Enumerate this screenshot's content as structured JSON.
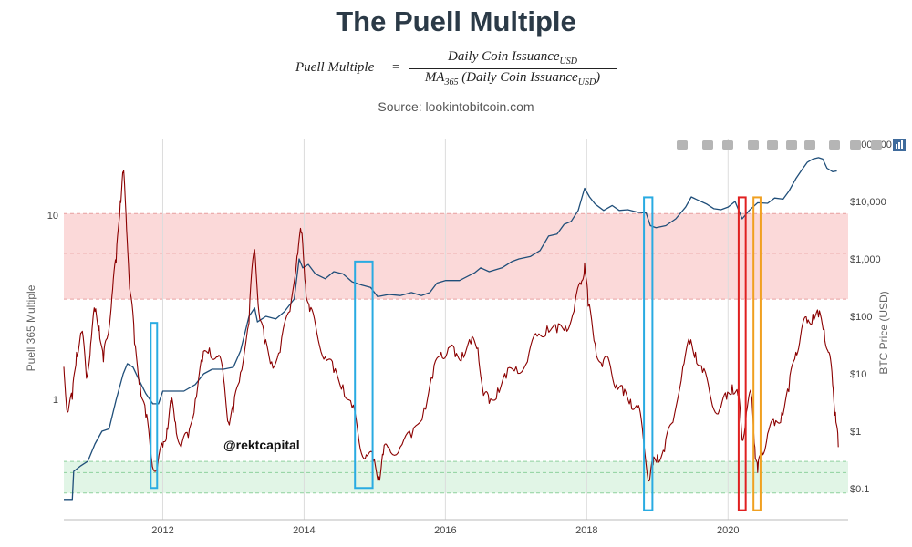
{
  "header": {
    "title": "The Puell Multiple",
    "formula": {
      "lhs": "Puell Multiple",
      "eq": "=",
      "numerator": "Daily Coin Issuance",
      "numerator_sub": "USD",
      "denominator_prefix": "MA",
      "denominator_prefix_sub": "365",
      "denominator": "(Daily Coin Issuance",
      "denominator_sub": "USD",
      "denominator_close": ")"
    },
    "source": "Source: lookintobitcoin.com"
  },
  "watermark": "@rektcapital",
  "toolbar": {
    "icons": [
      "camera-icon",
      "zoom-icon",
      "pan-icon",
      "zoom-in-icon",
      "zoom-out-icon",
      "autoscale-icon",
      "home-icon",
      "spike-lines-icon",
      "hover-closest-icon",
      "hover-compare-icon",
      "plotly-logo-icon"
    ]
  },
  "chart_data": {
    "type": "line",
    "title": "",
    "x_range": [
      2010.6,
      2021.7
    ],
    "x_ticks": [
      2012,
      2014,
      2016,
      2018,
      2020
    ],
    "x_tick_labels": [
      "2012",
      "2014",
      "2016",
      "2018",
      "2020"
    ],
    "left_axis": {
      "label": "Puell 365 Multiple",
      "scale": "log",
      "ticks": [
        1,
        10
      ],
      "tick_labels": [
        "1",
        "10"
      ]
    },
    "right_axis": {
      "label": "BTC Price (USD)",
      "scale": "log",
      "ticks": [
        0.1,
        1,
        10,
        100,
        1000,
        10000,
        100000
      ],
      "tick_labels": [
        "$0.1",
        "$1",
        "$10",
        "$100",
        "$1,000",
        "$10,000",
        "$100,000"
      ]
    },
    "zones": [
      {
        "name": "red-zone",
        "from": 3.5,
        "to": 10.2,
        "color": "#fbd9d9",
        "midline": 6.2
      },
      {
        "name": "green-zone",
        "from": 0.31,
        "to": 0.46,
        "color": "#e1f5e6",
        "midline": 0.4
      }
    ],
    "series": [
      {
        "axis": "left",
        "color": "#8b0000",
        "points": [
          [
            2010.6,
            1.5
          ],
          [
            2010.65,
            0.85
          ],
          [
            2010.72,
            1.0
          ],
          [
            2010.78,
            1.8
          ],
          [
            2010.85,
            2.3
          ],
          [
            2010.92,
            1.3
          ],
          [
            2010.98,
            2.0
          ],
          [
            2011.04,
            3.0
          ],
          [
            2011.1,
            2.5
          ],
          [
            2011.16,
            1.6
          ],
          [
            2011.22,
            2.2
          ],
          [
            2011.28,
            3.6
          ],
          [
            2011.34,
            5.5
          ],
          [
            2011.4,
            12.0
          ],
          [
            2011.44,
            17.0
          ],
          [
            2011.48,
            10.0
          ],
          [
            2011.53,
            4.0
          ],
          [
            2011.6,
            2.0
          ],
          [
            2011.68,
            1.2
          ],
          [
            2011.76,
            0.8
          ],
          [
            2011.84,
            0.48
          ],
          [
            2011.92,
            0.42
          ],
          [
            2012.0,
            0.55
          ],
          [
            2012.06,
            0.7
          ],
          [
            2012.12,
            0.95
          ],
          [
            2012.18,
            0.75
          ],
          [
            2012.26,
            0.55
          ],
          [
            2012.36,
            0.62
          ],
          [
            2012.46,
            1.0
          ],
          [
            2012.56,
            1.6
          ],
          [
            2012.66,
            1.9
          ],
          [
            2012.78,
            1.7
          ],
          [
            2012.86,
            1.3
          ],
          [
            2012.93,
            0.75
          ],
          [
            2013.0,
            0.85
          ],
          [
            2013.1,
            1.4
          ],
          [
            2013.22,
            2.6
          ],
          [
            2013.3,
            6.5
          ],
          [
            2013.36,
            3.0
          ],
          [
            2013.44,
            2.0
          ],
          [
            2013.54,
            1.6
          ],
          [
            2013.66,
            1.8
          ],
          [
            2013.8,
            3.0
          ],
          [
            2013.9,
            6.0
          ],
          [
            2013.96,
            8.0
          ],
          [
            2014.02,
            4.2
          ],
          [
            2014.08,
            3.0
          ],
          [
            2014.18,
            2.3
          ],
          [
            2014.3,
            1.7
          ],
          [
            2014.42,
            1.4
          ],
          [
            2014.55,
            1.2
          ],
          [
            2014.68,
            0.9
          ],
          [
            2014.78,
            0.58
          ],
          [
            2014.88,
            0.5
          ],
          [
            2014.98,
            0.46
          ],
          [
            2015.06,
            0.38
          ],
          [
            2015.12,
            0.5
          ],
          [
            2015.2,
            0.55
          ],
          [
            2015.36,
            0.55
          ],
          [
            2015.52,
            0.62
          ],
          [
            2015.7,
            0.9
          ],
          [
            2015.82,
            1.3
          ],
          [
            2015.94,
            1.8
          ],
          [
            2016.04,
            1.9
          ],
          [
            2016.14,
            1.7
          ],
          [
            2016.24,
            1.8
          ],
          [
            2016.36,
            2.0
          ],
          [
            2016.46,
            1.9
          ],
          [
            2016.54,
            1.05
          ],
          [
            2016.62,
            0.95
          ],
          [
            2016.74,
            1.15
          ],
          [
            2016.86,
            1.3
          ],
          [
            2017.0,
            1.5
          ],
          [
            2017.16,
            1.6
          ],
          [
            2017.3,
            2.2
          ],
          [
            2017.44,
            2.5
          ],
          [
            2017.58,
            2.3
          ],
          [
            2017.7,
            2.5
          ],
          [
            2017.82,
            3.0
          ],
          [
            2017.92,
            4.2
          ],
          [
            2017.97,
            5.5
          ],
          [
            2018.02,
            3.2
          ],
          [
            2018.12,
            2.0
          ],
          [
            2018.22,
            1.5
          ],
          [
            2018.32,
            1.6
          ],
          [
            2018.42,
            1.2
          ],
          [
            2018.52,
            1.05
          ],
          [
            2018.62,
            1.0
          ],
          [
            2018.72,
            0.9
          ],
          [
            2018.8,
            0.62
          ],
          [
            2018.88,
            0.36
          ],
          [
            2018.94,
            0.44
          ],
          [
            2019.0,
            0.5
          ],
          [
            2019.1,
            0.52
          ],
          [
            2019.22,
            0.75
          ],
          [
            2019.36,
            1.5
          ],
          [
            2019.46,
            2.0
          ],
          [
            2019.54,
            1.8
          ],
          [
            2019.64,
            1.4
          ],
          [
            2019.76,
            1.0
          ],
          [
            2019.88,
            0.88
          ],
          [
            2019.98,
            1.0
          ],
          [
            2020.06,
            1.2
          ],
          [
            2020.14,
            1.05
          ],
          [
            2020.2,
            0.6
          ],
          [
            2020.26,
            0.85
          ],
          [
            2020.33,
            1.05
          ],
          [
            2020.38,
            0.55
          ],
          [
            2020.42,
            0.4
          ],
          [
            2020.48,
            0.52
          ],
          [
            2020.56,
            0.65
          ],
          [
            2020.66,
            0.72
          ],
          [
            2020.76,
            0.85
          ],
          [
            2020.86,
            1.1
          ],
          [
            2020.96,
            1.8
          ],
          [
            2021.04,
            2.4
          ],
          [
            2021.12,
            2.6
          ],
          [
            2021.2,
            2.9
          ],
          [
            2021.28,
            2.8
          ],
          [
            2021.36,
            2.4
          ],
          [
            2021.42,
            1.8
          ],
          [
            2021.48,
            1.2
          ],
          [
            2021.52,
            0.85
          ],
          [
            2021.56,
            0.55
          ]
        ]
      },
      {
        "axis": "right",
        "color": "#1f4e79",
        "points": [
          [
            2010.6,
            0.065
          ],
          [
            2010.72,
            0.065
          ],
          [
            2010.74,
            0.2
          ],
          [
            2010.84,
            0.25
          ],
          [
            2010.94,
            0.3
          ],
          [
            2011.04,
            0.6
          ],
          [
            2011.14,
            1.0
          ],
          [
            2011.24,
            1.1
          ],
          [
            2011.34,
            3.5
          ],
          [
            2011.44,
            10.0
          ],
          [
            2011.5,
            15.0
          ],
          [
            2011.58,
            13.0
          ],
          [
            2011.66,
            8.0
          ],
          [
            2011.76,
            4.5
          ],
          [
            2011.86,
            3.0
          ],
          [
            2011.94,
            3.0
          ],
          [
            2012.0,
            5.0
          ],
          [
            2012.12,
            5.0
          ],
          [
            2012.3,
            5.0
          ],
          [
            2012.46,
            6.5
          ],
          [
            2012.58,
            10.0
          ],
          [
            2012.7,
            12.0
          ],
          [
            2012.86,
            12.0
          ],
          [
            2013.0,
            13.0
          ],
          [
            2013.1,
            25.0
          ],
          [
            2013.22,
            100.0
          ],
          [
            2013.3,
            140.0
          ],
          [
            2013.34,
            80.0
          ],
          [
            2013.46,
            100.0
          ],
          [
            2013.6,
            90.0
          ],
          [
            2013.72,
            120.0
          ],
          [
            2013.86,
            200.0
          ],
          [
            2013.93,
            1000.0
          ],
          [
            2013.98,
            700.0
          ],
          [
            2014.06,
            800.0
          ],
          [
            2014.16,
            550.0
          ],
          [
            2014.3,
            450.0
          ],
          [
            2014.42,
            600.0
          ],
          [
            2014.55,
            550.0
          ],
          [
            2014.68,
            400.0
          ],
          [
            2014.82,
            350.0
          ],
          [
            2014.94,
            320.0
          ],
          [
            2015.04,
            220.0
          ],
          [
            2015.2,
            240.0
          ],
          [
            2015.36,
            230.0
          ],
          [
            2015.52,
            260.0
          ],
          [
            2015.66,
            230.0
          ],
          [
            2015.78,
            260.0
          ],
          [
            2015.88,
            380.0
          ],
          [
            2016.0,
            420.0
          ],
          [
            2016.2,
            420.0
          ],
          [
            2016.42,
            580.0
          ],
          [
            2016.5,
            700.0
          ],
          [
            2016.62,
            600.0
          ],
          [
            2016.8,
            700.0
          ],
          [
            2016.94,
            900.0
          ],
          [
            2017.04,
            1000.0
          ],
          [
            2017.2,
            1100.0
          ],
          [
            2017.34,
            1400.0
          ],
          [
            2017.46,
            2500.0
          ],
          [
            2017.58,
            2700.0
          ],
          [
            2017.68,
            4000.0
          ],
          [
            2017.78,
            4500.0
          ],
          [
            2017.88,
            7000.0
          ],
          [
            2017.97,
            17000.0
          ],
          [
            2018.04,
            12000.0
          ],
          [
            2018.12,
            9000.0
          ],
          [
            2018.24,
            7000.0
          ],
          [
            2018.36,
            8500.0
          ],
          [
            2018.46,
            7000.0
          ],
          [
            2018.58,
            7200.0
          ],
          [
            2018.72,
            6500.0
          ],
          [
            2018.84,
            6300.0
          ],
          [
            2018.9,
            3800.0
          ],
          [
            2018.98,
            3500.0
          ],
          [
            2019.12,
            3800.0
          ],
          [
            2019.26,
            5000.0
          ],
          [
            2019.4,
            8000.0
          ],
          [
            2019.48,
            12000.0
          ],
          [
            2019.58,
            10500.0
          ],
          [
            2019.7,
            9000.0
          ],
          [
            2019.8,
            7500.0
          ],
          [
            2019.9,
            7200.0
          ],
          [
            2020.0,
            8000.0
          ],
          [
            2020.1,
            10000.0
          ],
          [
            2020.2,
            5000.0
          ],
          [
            2020.3,
            7000.0
          ],
          [
            2020.42,
            9500.0
          ],
          [
            2020.56,
            9300.0
          ],
          [
            2020.66,
            11500.0
          ],
          [
            2020.78,
            11000.0
          ],
          [
            2020.86,
            15000.0
          ],
          [
            2020.96,
            25000.0
          ],
          [
            2021.04,
            35000.0
          ],
          [
            2021.12,
            48000.0
          ],
          [
            2021.2,
            55000.0
          ],
          [
            2021.28,
            58000.0
          ],
          [
            2021.34,
            55000.0
          ],
          [
            2021.4,
            38000.0
          ],
          [
            2021.48,
            33000.0
          ],
          [
            2021.54,
            34000.0
          ]
        ]
      }
    ],
    "highlight_boxes": [
      {
        "name": "blue-box-2011",
        "x": [
          2011.83,
          2011.92
        ],
        "y": [
          0.33,
          2.6
        ],
        "color": "#29abe2"
      },
      {
        "name": "blue-box-2015",
        "x": [
          2014.72,
          2014.97
        ],
        "y": [
          0.33,
          5.6
        ],
        "color": "#29abe2"
      },
      {
        "name": "blue-box-2019",
        "x": [
          2018.81,
          2018.93
        ],
        "y": [
          0.25,
          12.5
        ],
        "color": "#29abe2"
      },
      {
        "name": "red-box-2020",
        "x": [
          2020.15,
          2020.25
        ],
        "y": [
          0.25,
          12.5
        ],
        "color": "#e02020"
      },
      {
        "name": "orange-box-2020",
        "x": [
          2020.36,
          2020.46
        ],
        "y": [
          0.25,
          12.5
        ],
        "color": "#f0a020"
      }
    ]
  }
}
